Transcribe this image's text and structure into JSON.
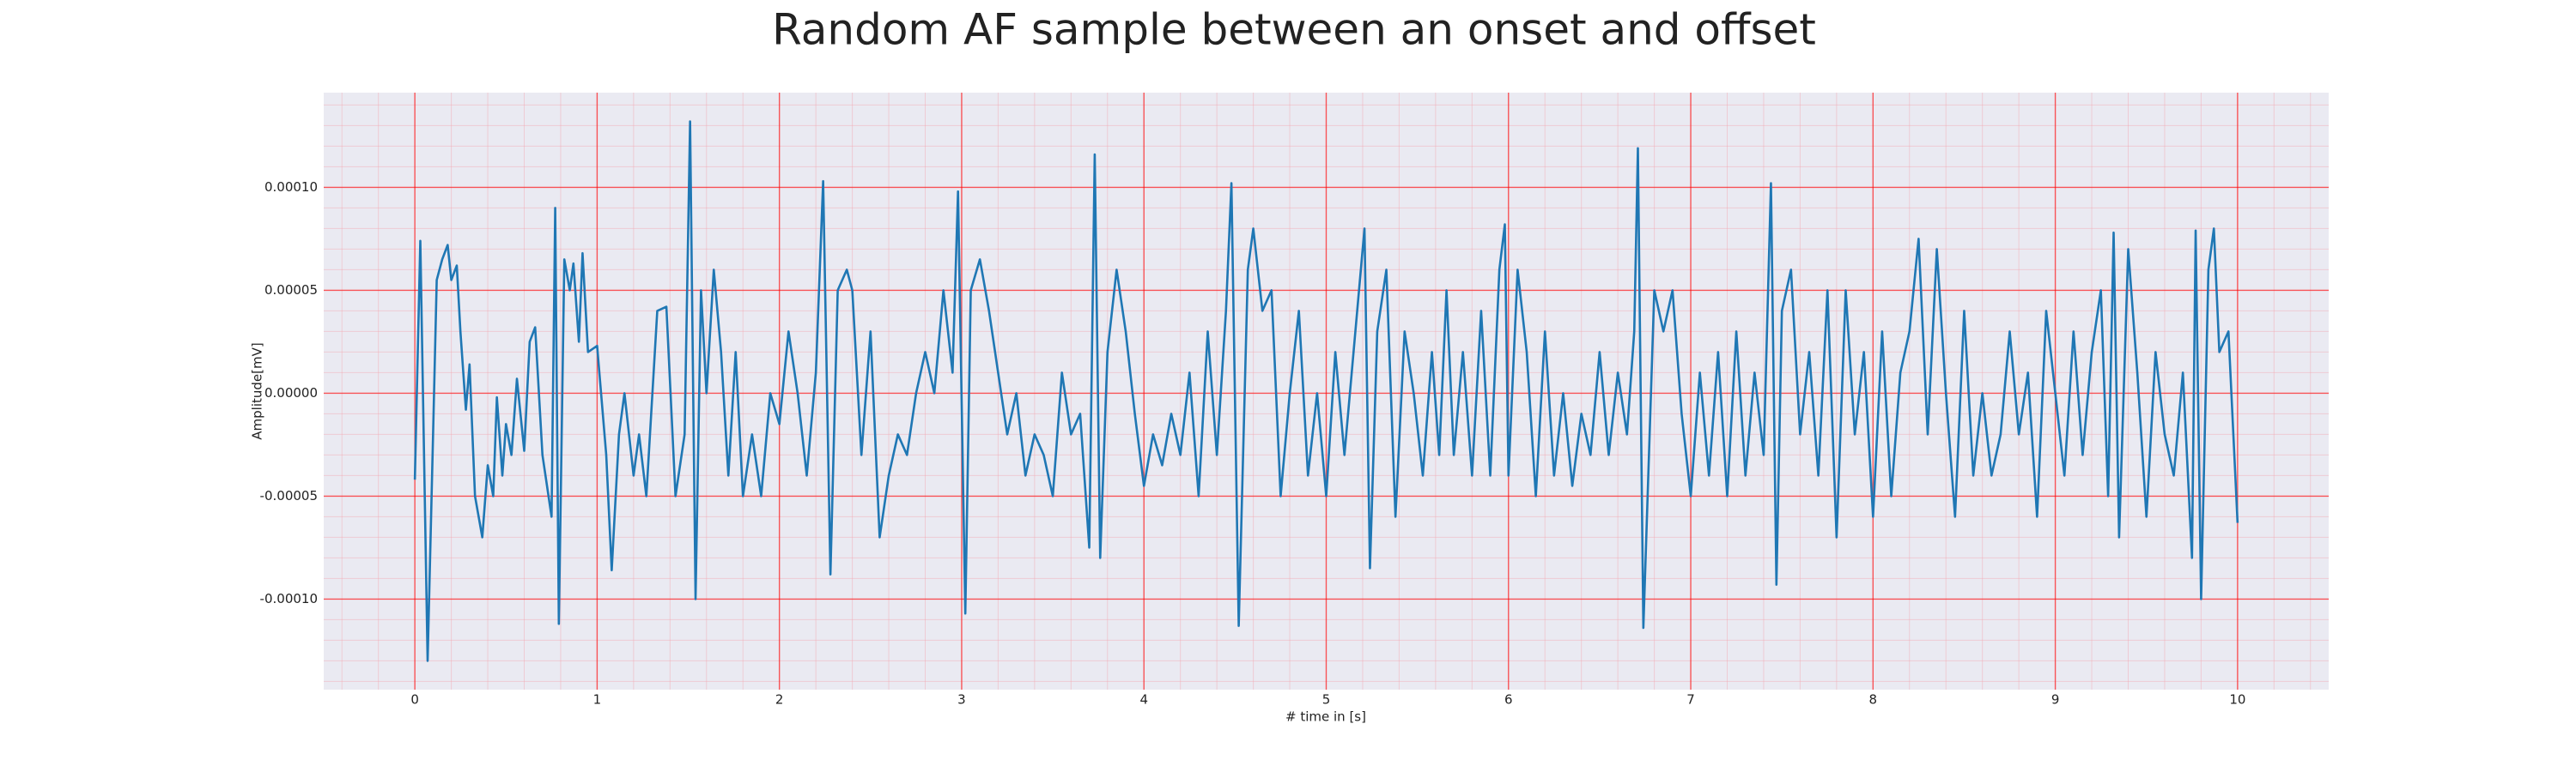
{
  "chart_data": {
    "type": "line",
    "title": "Random AF sample between an onset and offset",
    "xlabel": "# time in [s]",
    "ylabel": "Amplitude[mV]",
    "color": "#1f77b4",
    "grid": true,
    "minor_grid": true,
    "xlim": [
      -0.5,
      10.5
    ],
    "ylim": [
      -0.000144,
      0.000146
    ],
    "xticks": [
      0,
      1,
      2,
      3,
      4,
      5,
      6,
      7,
      8,
      9,
      10
    ],
    "yticks": [
      {
        "value": -0.0001,
        "label": "-0.00010"
      },
      {
        "value": -5e-05,
        "label": "-0.00005"
      },
      {
        "value": 0,
        "label": "0.00000"
      },
      {
        "value": 5e-05,
        "label": "0.00005"
      },
      {
        "value": 0.0001,
        "label": "0.00010"
      }
    ],
    "xminorticks": [
      -0.4,
      -0.2,
      0,
      0.2,
      0.4,
      0.6,
      0.8,
      1,
      1.2,
      1.4,
      1.6,
      1.8,
      2,
      2.2,
      2.4,
      2.6,
      2.8,
      3,
      3.2,
      3.4,
      3.6,
      3.8,
      4,
      4.2,
      4.4,
      4.6,
      4.8,
      5,
      5.2,
      5.4,
      5.6,
      5.8,
      6,
      6.2,
      6.4,
      6.6,
      6.8,
      7,
      7.2,
      7.4,
      7.6,
      7.8,
      8,
      8.2,
      8.4,
      8.6,
      8.8,
      9,
      9.2,
      9.4,
      9.6,
      9.8,
      10,
      10.2,
      10.4
    ],
    "yminorticks": [
      -0.00014,
      -0.00013,
      -0.00012,
      -0.00011,
      -0.0001,
      -9e-05,
      -8e-05,
      -7e-05,
      -6e-05,
      -5e-05,
      -4e-05,
      -3e-05,
      -2e-05,
      -1e-05,
      0,
      1e-05,
      2e-05,
      3e-05,
      4e-05,
      5e-05,
      6e-05,
      7e-05,
      8e-05,
      9e-05,
      0.0001,
      0.00011,
      0.00012,
      0.00013,
      0.00014
    ],
    "x": [
      0,
      0.03,
      0.07,
      0.1,
      0.12,
      0.15,
      0.18,
      0.2,
      0.23,
      0.25,
      0.28,
      0.3,
      0.33,
      0.37,
      0.4,
      0.43,
      0.45,
      0.48,
      0.5,
      0.53,
      0.56,
      0.6,
      0.63,
      0.66,
      0.7,
      0.75,
      0.77,
      0.79,
      0.82,
      0.85,
      0.87,
      0.9,
      0.92,
      0.95,
      1.0,
      1.05,
      1.08,
      1.12,
      1.15,
      1.2,
      1.23,
      1.27,
      1.33,
      1.38,
      1.43,
      1.48,
      1.51,
      1.54,
      1.57,
      1.6,
      1.64,
      1.68,
      1.72,
      1.76,
      1.8,
      1.85,
      1.9,
      1.95,
      2.0,
      2.05,
      2.1,
      2.15,
      2.2,
      2.24,
      2.28,
      2.32,
      2.37,
      2.4,
      2.45,
      2.5,
      2.55,
      2.6,
      2.65,
      2.7,
      2.75,
      2.8,
      2.85,
      2.9,
      2.95,
      2.98,
      3.02,
      3.05,
      3.1,
      3.15,
      3.2,
      3.25,
      3.3,
      3.35,
      3.4,
      3.45,
      3.5,
      3.55,
      3.6,
      3.65,
      3.7,
      3.73,
      3.76,
      3.8,
      3.85,
      3.9,
      3.95,
      4.0,
      4.05,
      4.1,
      4.15,
      4.2,
      4.25,
      4.3,
      4.35,
      4.4,
      4.45,
      4.48,
      4.52,
      4.57,
      4.6,
      4.65,
      4.7,
      4.75,
      4.8,
      4.85,
      4.9,
      4.95,
      5.0,
      5.05,
      5.1,
      5.15,
      5.21,
      5.24,
      5.28,
      5.33,
      5.38,
      5.43,
      5.48,
      5.53,
      5.58,
      5.62,
      5.66,
      5.7,
      5.75,
      5.8,
      5.85,
      5.9,
      5.95,
      5.98,
      6.0,
      6.05,
      6.1,
      6.15,
      6.2,
      6.25,
      6.3,
      6.35,
      6.4,
      6.45,
      6.5,
      6.55,
      6.6,
      6.65,
      6.69,
      6.71,
      6.74,
      6.8,
      6.85,
      6.9,
      6.95,
      7.0,
      7.05,
      7.1,
      7.15,
      7.2,
      7.25,
      7.3,
      7.35,
      7.4,
      7.44,
      7.47,
      7.5,
      7.55,
      7.6,
      7.65,
      7.7,
      7.75,
      7.8,
      7.85,
      7.9,
      7.95,
      8.0,
      8.05,
      8.1,
      8.15,
      8.2,
      8.25,
      8.3,
      8.35,
      8.4,
      8.45,
      8.5,
      8.55,
      8.6,
      8.65,
      8.7,
      8.75,
      8.8,
      8.85,
      8.9,
      8.95,
      9.0,
      9.05,
      9.1,
      9.15,
      9.2,
      9.25,
      9.29,
      9.32,
      9.35,
      9.4,
      9.45,
      9.5,
      9.55,
      9.6,
      9.65,
      9.7,
      9.75,
      9.77,
      9.8,
      9.84,
      9.87,
      9.9,
      9.95,
      10.0
    ],
    "values": [
      -4.2e-05,
      7.4e-05,
      -0.00013,
      -2e-05,
      5.5e-05,
      6.5e-05,
      7.2e-05,
      5.5e-05,
      6.2e-05,
      3e-05,
      -8e-06,
      1.4e-05,
      -5e-05,
      -7e-05,
      -3.5e-05,
      -5e-05,
      -2e-06,
      -4e-05,
      -1.5e-05,
      -3e-05,
      7e-06,
      -2.8e-05,
      2.5e-05,
      3.2e-05,
      -3e-05,
      -6e-05,
      9e-05,
      -0.000112,
      6.5e-05,
      5e-05,
      6.3e-05,
      2.5e-05,
      6.8e-05,
      2e-05,
      2.3e-05,
      -3e-05,
      -8.6e-05,
      -2e-05,
      0,
      -4e-05,
      -2e-05,
      -5e-05,
      4e-05,
      4.2e-05,
      -5e-05,
      -2e-05,
      0.000132,
      -0.0001,
      5e-05,
      0,
      6e-05,
      2e-05,
      -4e-05,
      2e-05,
      -5e-05,
      -2e-05,
      -5e-05,
      0,
      -1.5e-05,
      3e-05,
      0,
      -4e-05,
      1e-05,
      0.000103,
      -8.8e-05,
      5e-05,
      6e-05,
      5e-05,
      -3e-05,
      3e-05,
      -7e-05,
      -4e-05,
      -2e-05,
      -3e-05,
      0,
      2e-05,
      0,
      5e-05,
      1e-05,
      9.8e-05,
      -0.000107,
      5e-05,
      6.5e-05,
      4e-05,
      1e-05,
      -2e-05,
      0,
      -4e-05,
      -2e-05,
      -3e-05,
      -5e-05,
      1e-05,
      -2e-05,
      -1e-05,
      -7.5e-05,
      0.000116,
      -8e-05,
      2e-05,
      6e-05,
      3e-05,
      -1e-05,
      -4.5e-05,
      -2e-05,
      -3.5e-05,
      -1e-05,
      -3e-05,
      1e-05,
      -5e-05,
      3e-05,
      -3e-05,
      4e-05,
      0.000102,
      -0.000113,
      6e-05,
      8e-05,
      4e-05,
      5e-05,
      -5e-05,
      0,
      4e-05,
      -4e-05,
      0,
      -5e-05,
      2e-05,
      -3e-05,
      2e-05,
      8e-05,
      -8.5e-05,
      3e-05,
      6e-05,
      -6e-05,
      3e-05,
      0,
      -4e-05,
      2e-05,
      -3e-05,
      5e-05,
      -3e-05,
      2e-05,
      -4e-05,
      4e-05,
      -4e-05,
      6e-05,
      8.2e-05,
      -4e-05,
      6e-05,
      2e-05,
      -5e-05,
      3e-05,
      -4e-05,
      0,
      -4.5e-05,
      -1e-05,
      -3e-05,
      2e-05,
      -3e-05,
      1e-05,
      -2e-05,
      3e-05,
      0.000119,
      -0.000114,
      5e-05,
      3e-05,
      5e-05,
      -1e-05,
      -5e-05,
      1e-05,
      -4e-05,
      2e-05,
      -5e-05,
      3e-05,
      -4e-05,
      1e-05,
      -3e-05,
      0.000102,
      -9.3e-05,
      4e-05,
      6e-05,
      -2e-05,
      2e-05,
      -4e-05,
      5e-05,
      -7e-05,
      5e-05,
      -2e-05,
      2e-05,
      -6e-05,
      3e-05,
      -5e-05,
      1e-05,
      3e-05,
      7.5e-05,
      -2e-05,
      7e-05,
      0,
      -6e-05,
      4e-05,
      -4e-05,
      0,
      -4e-05,
      -2e-05,
      3e-05,
      -2e-05,
      1e-05,
      -6e-05,
      4e-05,
      0,
      -4e-05,
      3e-05,
      -3e-05,
      2e-05,
      5e-05,
      -5e-05,
      7.8e-05,
      -7e-05,
      7e-05,
      1e-05,
      -6e-05,
      2e-05,
      -2e-05,
      -4e-05,
      1e-05,
      -8e-05,
      7.9e-05,
      -0.0001,
      6e-05,
      8e-05,
      2e-05,
      3e-05,
      -6.3e-05
    ]
  }
}
